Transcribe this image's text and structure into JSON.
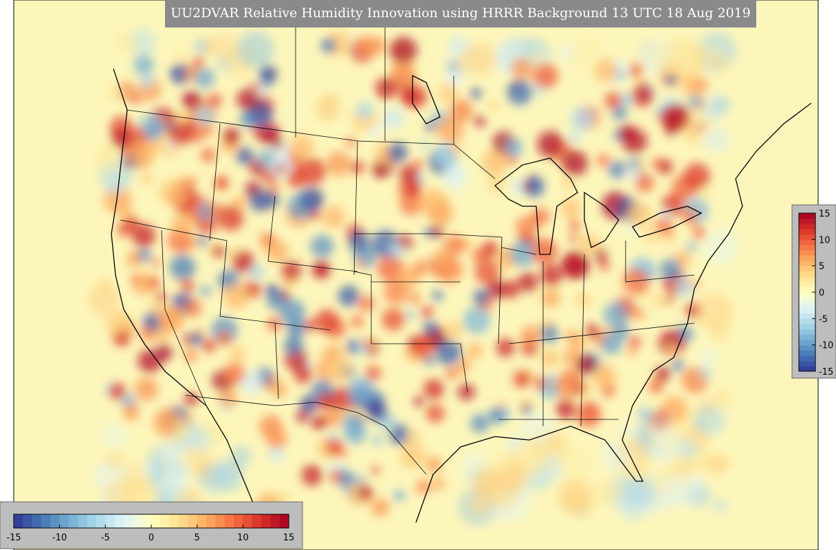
{
  "title": "UU2DVAR Relative Humidity Innovation using HRRR Background 13 UTC 18 Aug 2019",
  "colormap": [
    "#313695",
    "#4575b4",
    "#74add1",
    "#abd9e9",
    "#e0f3f8",
    "#ffffbf",
    "#fee090",
    "#fdae61",
    "#f46d43",
    "#d73027",
    "#a50026"
  ],
  "vertical_colorbar": {
    "lim": [
      -15,
      15
    ],
    "ticks": [
      15,
      10,
      5,
      0,
      -5,
      -10,
      -15
    ]
  },
  "horizontal_colorbar": {
    "lim": [
      -15,
      15
    ],
    "ticks": [
      -15,
      -10,
      -5,
      0,
      5,
      10,
      15
    ]
  }
}
